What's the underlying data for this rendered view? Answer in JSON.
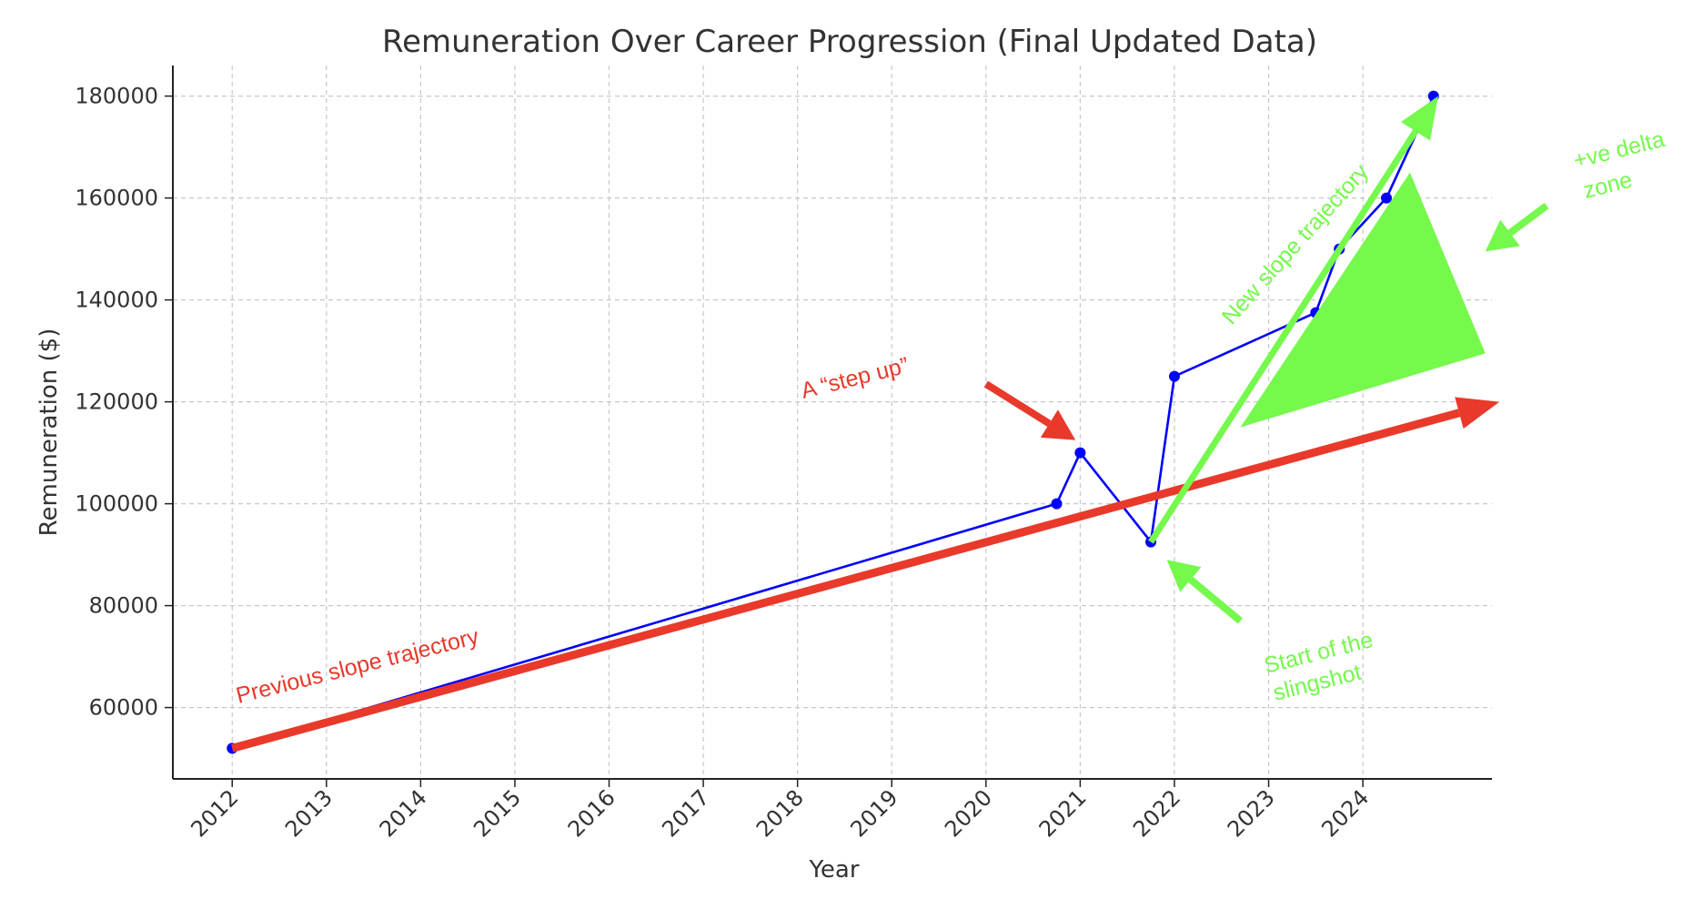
{
  "chart_data": {
    "type": "line",
    "title": "Remuneration Over Career Progression (Final Updated Data)",
    "xlabel": "Year",
    "ylabel": "Remuneration ($)",
    "x_ticks": [
      "2012",
      "2013",
      "2014",
      "2015",
      "2016",
      "2017",
      "2018",
      "2019",
      "2020",
      "2021",
      "2022",
      "2023",
      "2024"
    ],
    "y_ticks": [
      60000,
      80000,
      100000,
      120000,
      140000,
      160000,
      180000
    ],
    "xlim": [
      2011.37,
      2025.37
    ],
    "ylim": [
      46000,
      186000
    ],
    "grid": true,
    "series": [
      {
        "color": "#0000ff",
        "points": [
          {
            "x": 2012.0,
            "y": 52000
          },
          {
            "x": 2020.75,
            "y": 100000
          },
          {
            "x": 2021.0,
            "y": 110000
          },
          {
            "x": 2021.75,
            "y": 92500
          },
          {
            "x": 2022.0,
            "y": 125000
          },
          {
            "x": 2023.5,
            "y": 137500
          },
          {
            "x": 2023.75,
            "y": 150000
          },
          {
            "x": 2024.25,
            "y": 160000
          },
          {
            "x": 2024.75,
            "y": 180000
          }
        ]
      }
    ],
    "annotations": {
      "previous_slope": {
        "text": "Previous slope trajectory",
        "color": "#e8392b",
        "from": {
          "x": 2012.0,
          "y": 52000
        },
        "to": {
          "x": 2025.45,
          "y": 120000
        }
      },
      "step_up": {
        "text": "A “step up”",
        "color": "#e8392b",
        "arrow_from": {
          "x": 2020.0,
          "y": 123500
        },
        "arrow_to": {
          "x": 2020.95,
          "y": 112500
        }
      },
      "new_slope": {
        "text": "New slope trajectory",
        "color": "#75f94c",
        "from": {
          "x": 2021.75,
          "y": 92500
        },
        "to": {
          "x": 2024.8,
          "y": 180000
        }
      },
      "slingshot": {
        "text_lines": [
          "Start of the",
          "slingshot"
        ],
        "color": "#75f94c",
        "arrow_from": {
          "x": 2022.7,
          "y": 77000
        },
        "arrow_to": {
          "x": 2021.92,
          "y": 89000
        }
      },
      "delta_zone": {
        "text_lines": [
          "+ve delta",
          "zone"
        ],
        "color": "#75f94c",
        "triangle": [
          {
            "x": 2022.7,
            "y": 115000
          },
          {
            "x": 2024.5,
            "y": 165000
          },
          {
            "x": 2025.3,
            "y": 129500
          }
        ],
        "arrow_from": {
          "x": 2025.95,
          "y": 158500
        },
        "arrow_to": {
          "x": 2025.3,
          "y": 149500
        }
      }
    }
  }
}
